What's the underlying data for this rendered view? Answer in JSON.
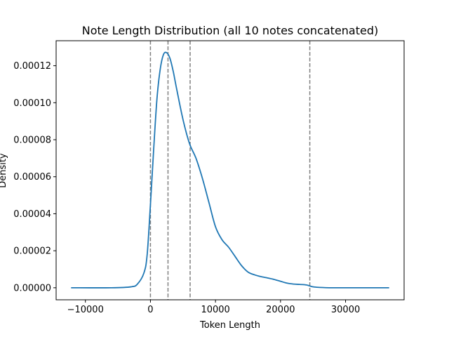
{
  "chart_data": {
    "type": "line",
    "title": "Note Length Distribution (all 10 notes concatenated)",
    "xlabel": "Token Length",
    "ylabel": "Density",
    "xlim": [
      -14500,
      39000
    ],
    "ylim": [
      -6.5e-06,
      0.0001335
    ],
    "xticks": [
      -10000,
      0,
      10000,
      20000,
      30000
    ],
    "xtick_labels": [
      "−10000",
      "0",
      "10000",
      "20000",
      "30000"
    ],
    "yticks": [
      0,
      2e-05,
      4e-05,
      6e-05,
      8e-05,
      0.0001,
      0.00012
    ],
    "ytick_labels": [
      "0.00000",
      "0.00002",
      "0.00004",
      "0.00006",
      "0.00008",
      "0.00010",
      "0.00012"
    ],
    "grid": false,
    "colors": {
      "line": "#1f77b4",
      "vline": "#808080",
      "axes": "#000000"
    },
    "series": [
      {
        "x": [
          -12200,
          -6000,
          -3000,
          -2000,
          -1000,
          -500,
          0,
          500,
          1000,
          1500,
          2000,
          2500,
          3000,
          3500,
          4000,
          5000,
          6000,
          7000,
          8000,
          9000,
          10000,
          11000,
          12000,
          13000,
          14000,
          15000,
          16000,
          17000,
          18000,
          19000,
          20000,
          21000,
          22000,
          23000,
          24000,
          25000,
          26000,
          28000,
          30000,
          33000,
          36700
        ],
        "y": [
          0,
          0,
          5e-07,
          2e-06,
          8e-06,
          1.8e-05,
          4.5e-05,
          7.5e-05,
          0.000102,
          0.000118,
          0.000126,
          0.000127,
          0.000124,
          0.000117,
          0.000108,
          9.1e-05,
          7.8e-05,
          7e-05,
          5.9e-05,
          4.6e-05,
          3.3e-05,
          2.6e-05,
          2.2e-05,
          1.7e-05,
          1.2e-05,
          8.5e-06,
          7e-06,
          6e-06,
          5.3e-06,
          4.5e-06,
          3.5e-06,
          2.5e-06,
          2e-06,
          1.8e-06,
          1.5e-06,
          5e-07,
          2e-07,
          0,
          0,
          0,
          0
        ]
      }
    ],
    "vlines": [
      0,
      2700,
      6100,
      24500
    ]
  }
}
